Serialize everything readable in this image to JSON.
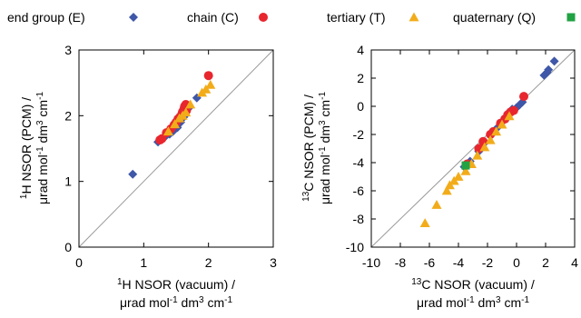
{
  "legend": [
    {
      "label": "end group (E)",
      "marker": "diamond",
      "color": "#3f57a8"
    },
    {
      "label": "chain (C)",
      "marker": "circle",
      "color": "#e8262e"
    },
    {
      "label": "tertiary (T)",
      "marker": "triangle",
      "color": "#f2ac1a"
    },
    {
      "label": "quaternary (Q)",
      "marker": "square",
      "color": "#21a243"
    }
  ],
  "chart_data": [
    {
      "type": "scatter",
      "xlabel_line1": "1H NSOR (vacuum) /",
      "xlabel_line2": "μrad mol-1 dm3 cm-1",
      "ylabel_line1": "1H NSOR (PCM) /",
      "ylabel_line2": "μrad mol-1 dm3 cm-1",
      "xlim": [
        0,
        3
      ],
      "ylim": [
        0,
        3
      ],
      "xticks": [
        "0",
        "1",
        "2",
        "3"
      ],
      "yticks": [
        "0",
        "1",
        "2",
        "3"
      ],
      "diagonal": true,
      "grid": false,
      "series": [
        {
          "name": "end group (E)",
          "marker": "diamond",
          "color": "#3f57a8",
          "points": [
            [
              0.83,
              1.11
            ],
            [
              1.22,
              1.6
            ],
            [
              1.33,
              1.68
            ],
            [
              1.4,
              1.72
            ],
            [
              1.45,
              1.76
            ],
            [
              1.52,
              1.82
            ],
            [
              1.57,
              1.9
            ],
            [
              1.62,
              1.98
            ],
            [
              1.7,
              2.12
            ],
            [
              1.82,
              2.27
            ]
          ]
        },
        {
          "name": "chain (C)",
          "marker": "circle",
          "color": "#e8262e",
          "points": [
            [
              1.25,
              1.63
            ],
            [
              1.28,
              1.65
            ],
            [
              1.35,
              1.74
            ],
            [
              1.42,
              1.8
            ],
            [
              1.47,
              1.86
            ],
            [
              1.5,
              1.9
            ],
            [
              1.53,
              1.95
            ],
            [
              1.56,
              1.98
            ],
            [
              1.59,
              2.03
            ],
            [
              1.6,
              2.06
            ],
            [
              1.62,
              2.1
            ],
            [
              1.63,
              2.14
            ],
            [
              1.65,
              2.17
            ],
            [
              1.66,
              2.08
            ],
            [
              2.0,
              2.61
            ]
          ]
        },
        {
          "name": "tertiary (T)",
          "marker": "triangle",
          "color": "#f2ac1a",
          "points": [
            [
              1.38,
              1.76
            ],
            [
              1.48,
              1.87
            ],
            [
              1.55,
              1.96
            ],
            [
              1.6,
              2.0
            ],
            [
              1.65,
              2.05
            ],
            [
              1.72,
              2.17
            ],
            [
              1.9,
              2.35
            ],
            [
              1.96,
              2.4
            ],
            [
              2.03,
              2.47
            ]
          ]
        }
      ]
    },
    {
      "type": "scatter",
      "xlabel_line1": "13C NSOR (vacuum) /",
      "xlabel_line2": "μrad mol-1 dm3 cm-1",
      "ylabel_line1": "13C NSOR (PCM) /",
      "ylabel_line2": "μrad mol-1 dm3 cm-1",
      "xlim": [
        -10,
        4
      ],
      "ylim": [
        -10,
        4
      ],
      "xticks": [
        "-10",
        "-8",
        "-6",
        "-4",
        "-2",
        "0",
        "2",
        "4"
      ],
      "yticks": [
        "-10",
        "-8",
        "-6",
        "-4",
        "-2",
        "0",
        "2",
        "4"
      ],
      "diagonal": true,
      "grid": false,
      "series": [
        {
          "name": "end group (E)",
          "marker": "diamond",
          "color": "#3f57a8",
          "points": [
            [
              -3.6,
              -4.3
            ],
            [
              -3.2,
              -3.9
            ],
            [
              -2.6,
              -3.2
            ],
            [
              -2.2,
              -2.6
            ],
            [
              -1.8,
              -2.0
            ],
            [
              -1.3,
              -1.5
            ],
            [
              -0.9,
              -1.0
            ],
            [
              -0.6,
              -0.5
            ],
            [
              -0.3,
              -0.2
            ],
            [
              0.0,
              -0.1
            ],
            [
              0.2,
              0.1
            ],
            [
              0.4,
              0.3
            ],
            [
              1.9,
              2.2
            ],
            [
              2.1,
              2.4
            ],
            [
              2.2,
              2.6
            ],
            [
              2.6,
              3.2
            ]
          ]
        },
        {
          "name": "chain (C)",
          "marker": "circle",
          "color": "#e8262e",
          "points": [
            [
              -3.4,
              -4.1
            ],
            [
              -2.6,
              -3.0
            ],
            [
              -2.3,
              -2.5
            ],
            [
              -1.8,
              -2.0
            ],
            [
              -1.6,
              -1.8
            ],
            [
              -1.1,
              -1.2
            ],
            [
              -0.8,
              -0.9
            ],
            [
              -0.6,
              -0.6
            ],
            [
              -0.4,
              -0.4
            ],
            [
              -0.2,
              -0.3
            ],
            [
              0.5,
              0.7
            ]
          ]
        },
        {
          "name": "tertiary (T)",
          "marker": "triangle",
          "color": "#f2ac1a",
          "points": [
            [
              -6.3,
              -8.3
            ],
            [
              -5.5,
              -7.0
            ],
            [
              -4.8,
              -6.0
            ],
            [
              -4.6,
              -5.6
            ],
            [
              -4.3,
              -5.3
            ],
            [
              -4.0,
              -5.0
            ],
            [
              -3.5,
              -4.6
            ],
            [
              -3.1,
              -4.1
            ],
            [
              -2.7,
              -3.5
            ],
            [
              -2.2,
              -2.9
            ],
            [
              -1.8,
              -2.4
            ],
            [
              -1.4,
              -1.8
            ],
            [
              -1.0,
              -1.3
            ],
            [
              -0.5,
              -0.7
            ]
          ]
        },
        {
          "name": "quaternary (Q)",
          "marker": "square",
          "color": "#21a243",
          "points": [
            [
              -3.5,
              -4.2
            ]
          ]
        }
      ]
    }
  ]
}
